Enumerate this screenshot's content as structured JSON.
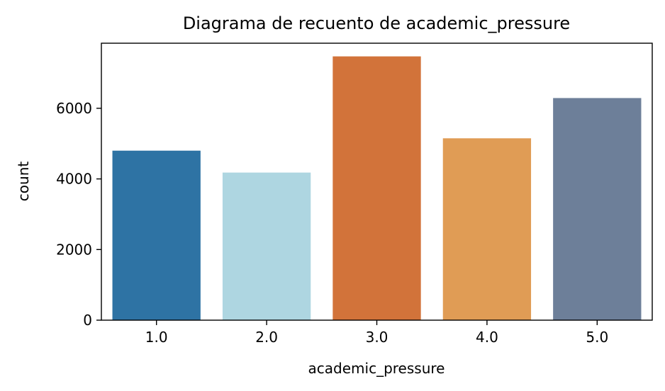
{
  "chart_data": {
    "type": "bar",
    "title": "Diagrama de recuento de academic_pressure",
    "xlabel": "academic_pressure",
    "ylabel": "count",
    "categories": [
      "1.0",
      "2.0",
      "3.0",
      "4.0",
      "5.0"
    ],
    "values": [
      4800,
      4180,
      7470,
      5150,
      6290
    ],
    "colors": [
      "#2e73a4",
      "#aed6e1",
      "#d2733a",
      "#e09c55",
      "#6d7f99"
    ],
    "ylim": [
      0,
      7843
    ],
    "yticks": [
      0,
      2000,
      4000,
      6000
    ],
    "grid": false,
    "legend": "none"
  }
}
